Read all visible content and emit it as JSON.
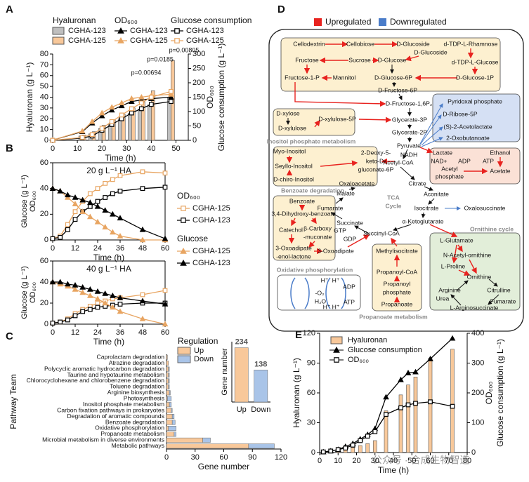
{
  "panels": [
    "A",
    "B",
    "C",
    "D",
    "E"
  ],
  "watermark": "公众号 · 合成生物智造",
  "chart_data": [
    {
      "type": "bar_line",
      "legend": "grouped",
      "xlabel": "Time (h)",
      "ylabel": "Hyaluronan (g L⁻¹)",
      "y2labels": [
        "OD₆₀₀",
        "Glucose consumption (g L⁻¹)"
      ],
      "xlim": [
        0,
        55
      ],
      "xticks": [
        0,
        10,
        20,
        30,
        40,
        50
      ],
      "ylim": [
        0,
        80
      ],
      "yticks": [
        0,
        10,
        20,
        30,
        40,
        50,
        60,
        70,
        80
      ],
      "y2lim": [
        0,
        300
      ],
      "y2ticks": [
        0,
        50,
        100,
        150,
        200,
        250,
        300
      ],
      "x": [
        0,
        12,
        16,
        20,
        24,
        28,
        32,
        36,
        40,
        48
      ],
      "groups": [
        {
          "title": "Hyaluronan",
          "kind": "bar",
          "series": [
            {
              "name": "CGHA-123",
              "color": "#bfbfbf",
              "values": [
                0.3,
                4,
                6,
                11,
                15,
                20,
                25,
                29,
                33,
                40
              ]
            },
            {
              "name": "CGHA-125",
              "color": "#f8c89a",
              "values": [
                0.3,
                5,
                8,
                14,
                19,
                24,
                30,
                36,
                46,
                74
              ]
            }
          ]
        },
        {
          "title": "OD₆₀₀",
          "kind": "triangle",
          "axis": "y2",
          "series": [
            {
              "name": "CGHA-123",
              "color": "#000000",
              "values": [
                1,
                30,
                60,
                85,
                105,
                120,
                135,
                140,
                145,
                150
              ]
            },
            {
              "name": "CGHA-125",
              "color": "#e8a562",
              "values": [
                1,
                32,
                65,
                95,
                115,
                130,
                145,
                150,
                155,
                160
              ]
            }
          ]
        },
        {
          "title": "Glucose consumption",
          "kind": "square",
          "axis": "y2",
          "series": [
            {
              "name": "CGHA-123",
              "color": "#000000",
              "values": [
                0,
                8,
                15,
                35,
                55,
                75,
                95,
                110,
                125,
                135
              ]
            },
            {
              "name": "CGHA-125",
              "color": "#e8a562",
              "values": [
                0,
                10,
                20,
                42,
                65,
                88,
                110,
                130,
                150,
                170
              ]
            }
          ]
        }
      ],
      "annotations": [
        "p=0.00694",
        "p=0.0185",
        "p=0.00805"
      ]
    },
    {
      "type": "line",
      "legend": "grouped",
      "title": "20 g L⁻¹ HA",
      "xlabel": "Time (h)",
      "ylabels": [
        "Glucose (g L⁻¹)",
        "OD₆₀₀"
      ],
      "xlim": [
        0,
        60
      ],
      "xticks": [
        0,
        12,
        24,
        36,
        48,
        60
      ],
      "ylim": [
        0,
        60
      ],
      "yticks": [
        0,
        20,
        40,
        60
      ],
      "x": [
        0,
        4,
        8,
        12,
        16,
        20,
        24,
        28,
        32,
        36,
        48,
        60
      ],
      "groups": [
        {
          "title": "OD₆₀₀",
          "kind": "square",
          "series": [
            {
              "name": "CGHA-125",
              "color": "#e8a562",
              "values": [
                1,
                3,
                12,
                22,
                30,
                36,
                40,
                44,
                47,
                50,
                53,
                52
              ]
            },
            {
              "name": "CGHA-123",
              "color": "#000000",
              "values": [
                1,
                2,
                8,
                16,
                22,
                26,
                30,
                33,
                36,
                38,
                40,
                41
              ]
            }
          ]
        },
        {
          "title": "Glucose",
          "kind": "triangle",
          "series": [
            {
              "name": "CGHA-125",
              "color": "#e8a562",
              "values": [
                40,
                38,
                33,
                28,
                22,
                18,
                14,
                10,
                6,
                3,
                0,
                0
              ]
            },
            {
              "name": "CGHA-123",
              "color": "#000000",
              "values": [
                40,
                38,
                35,
                33,
                31,
                29,
                26,
                23,
                20,
                17,
                8,
                1
              ]
            }
          ]
        }
      ]
    },
    {
      "type": "line",
      "title": "40 g L⁻¹ HA",
      "xlabel": "Time (h)",
      "ylabels": [
        "Glucose (g L⁻¹)",
        "OD₆₀₀"
      ],
      "xlim": [
        0,
        60
      ],
      "xticks": [
        0,
        12,
        24,
        36,
        48,
        60
      ],
      "ylim": [
        0,
        60
      ],
      "yticks": [
        0,
        20,
        40,
        60
      ],
      "x": [
        0,
        4,
        8,
        12,
        16,
        20,
        24,
        28,
        32,
        36,
        48,
        60
      ],
      "groups": [
        {
          "kind": "square",
          "series": [
            {
              "color": "#e8a562",
              "values": [
                1,
                2,
                5,
                10,
                14,
                17,
                20,
                22,
                24,
                25,
                28,
                32
              ]
            },
            {
              "color": "#000000",
              "values": [
                1,
                2,
                4,
                8,
                12,
                14,
                16,
                17,
                18,
                19,
                20,
                20
              ]
            }
          ]
        },
        {
          "kind": "triangle",
          "series": [
            {
              "color": "#e8a562",
              "values": [
                40,
                38,
                36,
                33,
                30,
                27,
                24,
                20,
                16,
                12,
                5,
                0
              ]
            },
            {
              "color": "#000000",
              "values": [
                40,
                40,
                38,
                37,
                35,
                33,
                31,
                29,
                27,
                25,
                22,
                19
              ]
            }
          ]
        }
      ]
    },
    {
      "type": "barh_stacked",
      "xlabel": "Gene number",
      "ylabel": "Pathway Team",
      "legend_title": "Regulation",
      "xlim": [
        0,
        120
      ],
      "xticks": [
        0,
        30,
        60,
        90,
        120
      ],
      "categories": [
        "Caprolactam degradation",
        "Atrazine degradation",
        "Polycyclic aromatic hydrocarbon degradation",
        "Taurine and hypotaurine metabolism",
        "Chlorocyclohexane and chlorobenzene degradation",
        "Toluene degradation",
        "Arginine biosynthesis",
        "Photosynthesis",
        "Inositol phosphate metabolism",
        "Carbon fixation pathways in prokaryotes",
        "Degradation of aromatic compounds",
        "Benzoate degradation",
        "Oxidative phosphorylation",
        "Propanoate metabolism",
        "Microbial metabolism in diverse environments",
        "Metabolic pathways"
      ],
      "series": [
        {
          "name": "Up",
          "color": "#f8c89a",
          "values": [
            1,
            2,
            2,
            2,
            2,
            2,
            3,
            1,
            3,
            5,
            6,
            6,
            2,
            8,
            38,
            86
          ]
        },
        {
          "name": "Down",
          "color": "#a9c4e8",
          "values": [
            0,
            0,
            1,
            1,
            1,
            1,
            1,
            4,
            2,
            1,
            2,
            3,
            8,
            2,
            8,
            27
          ]
        }
      ]
    },
    {
      "type": "bar",
      "ylabel": "Gene number",
      "categories": [
        "Up",
        "Down"
      ],
      "values": [
        234,
        138
      ],
      "colors": [
        "#f8c89a",
        "#a9c4e8"
      ],
      "ylim": [
        0,
        260
      ]
    },
    {
      "type": "bar_line",
      "legend": "list",
      "xlabel": "Time (h)",
      "ylabel": "Hyaluronan (g L⁻¹)",
      "y2labels": [
        "OD₆₀₀",
        "Glucose consumption (g L⁻¹)"
      ],
      "xlim": [
        0,
        80
      ],
      "xticks": [
        0,
        10,
        20,
        30,
        40,
        50,
        60,
        70,
        80
      ],
      "ylim": [
        0,
        120
      ],
      "yticks": [
        0,
        30,
        60,
        90,
        120
      ],
      "y2lim": [
        0,
        400
      ],
      "y2ticks": [
        0,
        100,
        200,
        300,
        400
      ],
      "x": [
        2,
        6,
        10,
        14,
        18,
        22,
        26,
        30,
        36,
        44,
        48,
        52,
        60,
        72
      ],
      "groups": [
        {
          "title": "Hyaluronan",
          "kind": "bar",
          "series": [
            {
              "color": "#f8c89a",
              "values": [
                1,
                1.5,
                2,
                3,
                5,
                7,
                9,
                12,
                42,
                58,
                68,
                76,
                95,
                104
              ]
            }
          ]
        },
        {
          "title": "Glucose consumption",
          "kind": "triangle",
          "axis": "y2",
          "series": [
            {
              "color": "#000000",
              "values": [
                2,
                5,
                10,
                20,
                30,
                45,
                60,
                80,
                186,
                244,
                267,
                270,
                314,
                383
              ]
            }
          ]
        },
        {
          "title": "OD₆₀₀",
          "kind": "square",
          "axis": "y2",
          "series": [
            {
              "color": "#000000",
              "values": [
                2,
                5,
                10,
                15,
                25,
                40,
                55,
                70,
                128,
                150,
                160,
                165,
                170,
                155
              ]
            }
          ]
        }
      ]
    }
  ],
  "diagram": {
    "legend": [
      {
        "label": "Upregulated",
        "color": "#e8231f"
      },
      {
        "label": "Downregulated",
        "color": "#4a7cc9"
      }
    ],
    "nodes": [
      "Cellodextrin",
      "Cellobiose",
      "D-Glucoside",
      "d-TDP-L-Rhamnose",
      "D-Glucoside",
      "d-TDP-L-Glucose",
      "Fructose",
      "Sucrose",
      "D-Glucose",
      "Fructose-1-P",
      "Mannitol",
      "D-Glucose-6P",
      "D-Glucose-1P",
      "D-Fructose-6P",
      "D-Fructose-1,6P₂",
      "D-xylose",
      "D-xylulose",
      "D-xylulose-5P",
      "Glycerate-3P",
      "Glycerate-2P",
      "Pyruvate",
      "Pyridoxal phosphate",
      "D-Ribose-5P",
      "(S)-2-Acetolactate",
      "2-Oxobutanoate",
      "Myo-Inositol",
      "Seyllo-Inositol",
      "D-chiro-Inositol",
      "2-Deoxy-5-",
      "keto-D-",
      "gluconate-6P",
      "NADH",
      "NAD+",
      "Acetyl-CoA",
      "Lactate",
      "Ethanol",
      "ADP",
      "ATP",
      "Acetyl",
      "phosphate",
      "Acetate",
      "Oxaloacetate",
      "Citrate",
      "Malate",
      "Aconitate",
      "Fumarate",
      "Isocitrate",
      "Oxalosuccinate",
      "Succinate",
      "α-Ketoglutarate",
      "GTP",
      "GDP",
      "Succinyl-CoA",
      "Benzoate",
      "3,4-Dihydroxy-benzoate",
      "Catechol",
      "β-Carboxy",
      "-muconate",
      "3-Oxoadipate",
      "-enol-lactone",
      "3-Oxoadipate",
      "Methylisocitrate",
      "Propanoyl-CoA",
      "Propanoyl",
      "phosphate",
      "Propanoate",
      "L-Glutamate",
      "N-Acetyl-ornithine",
      "L-Proline",
      "Ornithine",
      "Arginine",
      "Citrulline",
      "Urea",
      "Fumarate",
      "L-Arginosuccinate",
      "H⁺",
      "H⁺",
      "-O₂",
      "ADP",
      "H₂O",
      "H⁺",
      "H⁺",
      "ATP"
    ],
    "modules": [
      "Inositol phosphate metabolism",
      "Benzoate degradation",
      "TCA",
      "Cycle",
      "Ornithine cycle",
      "Oxidative phosphorylation",
      "Propanoate metabolism"
    ]
  }
}
